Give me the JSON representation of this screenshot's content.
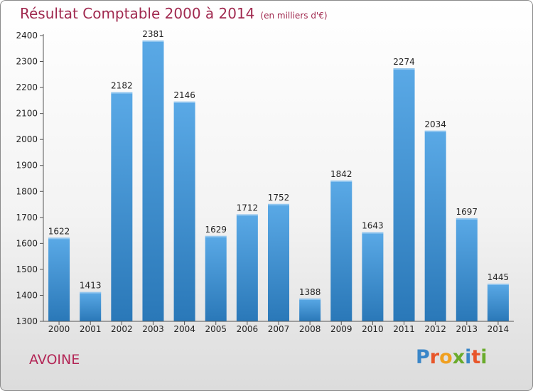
{
  "title": "Résultat Comptable 2000 à 2014",
  "subtitle": "(en milliers d'€)",
  "commune": "AVOINE",
  "logo": {
    "letters": [
      "P",
      "r",
      "o",
      "x",
      "i",
      "t",
      "i"
    ],
    "colors": [
      "#3a86c8",
      "#e8562a",
      "#f0a020",
      "#6aab2c",
      "#3a86c8",
      "#e8562a",
      "#6aab2c"
    ]
  },
  "colors": {
    "bar_top": "#5aa9e6",
    "bar_bottom": "#2a78b8",
    "title": "#a0294f"
  },
  "chart_data": {
    "type": "bar",
    "title": "Résultat Comptable 2000 à 2014",
    "xlabel": "",
    "ylabel": "",
    "categories": [
      "2000",
      "2001",
      "2002",
      "2003",
      "2004",
      "2005",
      "2006",
      "2007",
      "2008",
      "2009",
      "2010",
      "2011",
      "2012",
      "2013",
      "2014"
    ],
    "values": [
      1622,
      1413,
      2182,
      2381,
      2146,
      1629,
      1712,
      1752,
      1388,
      1842,
      1643,
      2274,
      2034,
      1697,
      1445
    ],
    "ylim": [
      1300,
      2400
    ],
    "yticks": [
      1300,
      1400,
      1500,
      1600,
      1700,
      1800,
      1900,
      2000,
      2100,
      2200,
      2300,
      2400
    ],
    "grid": false
  }
}
